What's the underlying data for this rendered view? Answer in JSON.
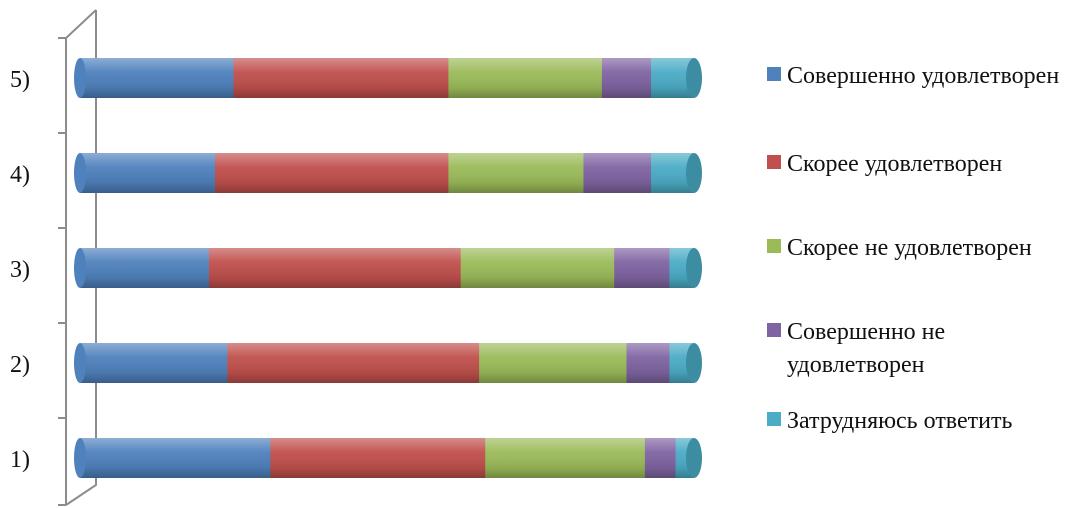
{
  "chart_data": {
    "type": "bar",
    "orientation": "horizontal",
    "stacked": "percent",
    "style": "3d-cylinder",
    "categories": [
      "1)",
      "2)",
      "3)",
      "4)",
      "5)"
    ],
    "xlim": [
      0,
      1
    ],
    "grid": false,
    "legend_position": "right",
    "series": [
      {
        "name": "Совершенно удовлетворен",
        "color": "#4F81BD",
        "values": [
          0.31,
          0.24,
          0.21,
          0.22,
          0.25
        ]
      },
      {
        "name": "Скорее удовлетворен",
        "color": "#C0504D",
        "values": [
          0.35,
          0.41,
          0.41,
          0.38,
          0.35
        ]
      },
      {
        "name": "Скорее не удовлетворен",
        "color": "#9BBB59",
        "values": [
          0.26,
          0.24,
          0.25,
          0.22,
          0.25
        ]
      },
      {
        "name": "Совершенно не удовлетворен",
        "color": "#8064A2",
        "values": [
          0.05,
          0.07,
          0.09,
          0.11,
          0.08
        ]
      },
      {
        "name": "Затрудняюсь ответить",
        "color": "#4BACC6",
        "values": [
          0.03,
          0.04,
          0.04,
          0.07,
          0.07
        ]
      }
    ]
  }
}
